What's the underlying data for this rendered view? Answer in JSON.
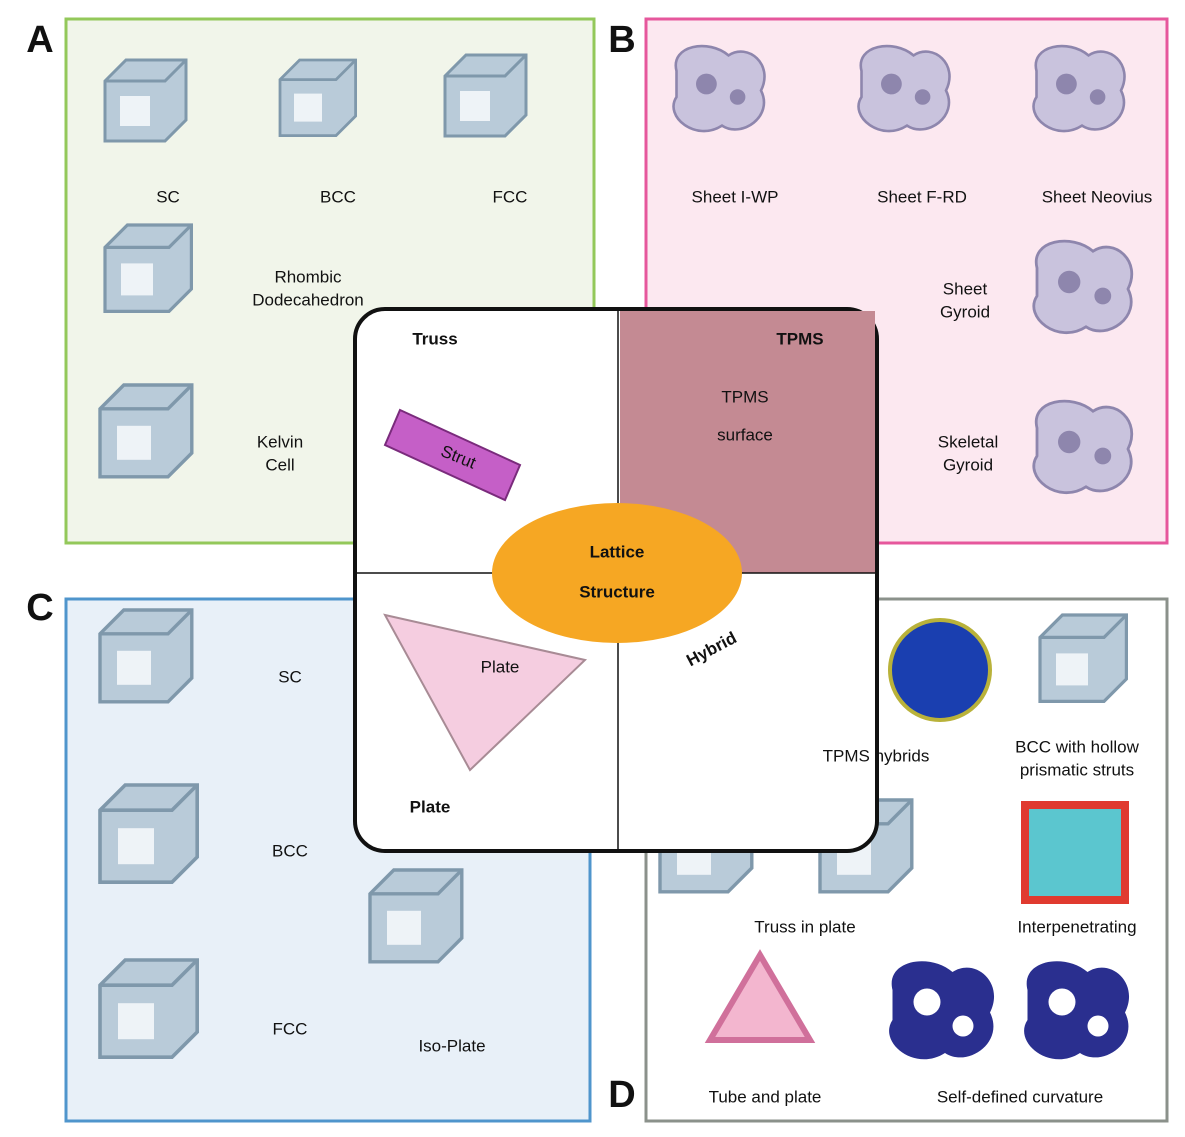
{
  "panels": {
    "A": {
      "letter": "A",
      "items": [
        {
          "label": [
            "SC"
          ]
        },
        {
          "label": [
            "BCC"
          ]
        },
        {
          "label": [
            "FCC"
          ]
        },
        {
          "label": [
            "Rhombic",
            "Dodecahedron"
          ]
        },
        {
          "label": [
            "Kelvin",
            "Cell"
          ]
        }
      ]
    },
    "B": {
      "letter": "B",
      "items": [
        {
          "label": [
            "Sheet I-WP"
          ]
        },
        {
          "label": [
            "Sheet F-RD"
          ]
        },
        {
          "label": [
            "Sheet Neovius"
          ]
        },
        {
          "label": [
            "Sheet",
            "Gyroid"
          ]
        },
        {
          "label": [
            "Skeletal",
            "Gyroid"
          ]
        }
      ]
    },
    "C": {
      "letter": "C",
      "items": [
        {
          "label": [
            "SC"
          ]
        },
        {
          "label": [
            "BCC"
          ]
        },
        {
          "label": [
            "FCC"
          ]
        },
        {
          "label": [
            "Iso-Plate"
          ]
        }
      ]
    },
    "D": {
      "letter": "D",
      "title": "Hybrid",
      "items": [
        {
          "label": [
            "TPMS hybrids"
          ]
        },
        {
          "label": [
            "BCC with hollow",
            "prismatic struts"
          ]
        },
        {
          "label": [
            "Truss in plate"
          ]
        },
        {
          "label": [
            "Interpenetrating"
          ]
        },
        {
          "label": [
            "Tube and plate"
          ]
        },
        {
          "label": [
            "Self-defined curvature"
          ]
        }
      ]
    }
  },
  "center": {
    "truss": "Truss",
    "tpms": "TPMS",
    "plate": "Plate",
    "strut": "Strut",
    "tpms_surface": [
      "TPMS",
      "surface"
    ],
    "plate_label": "Plate",
    "core": [
      "Lattice",
      "Structure"
    ]
  }
}
